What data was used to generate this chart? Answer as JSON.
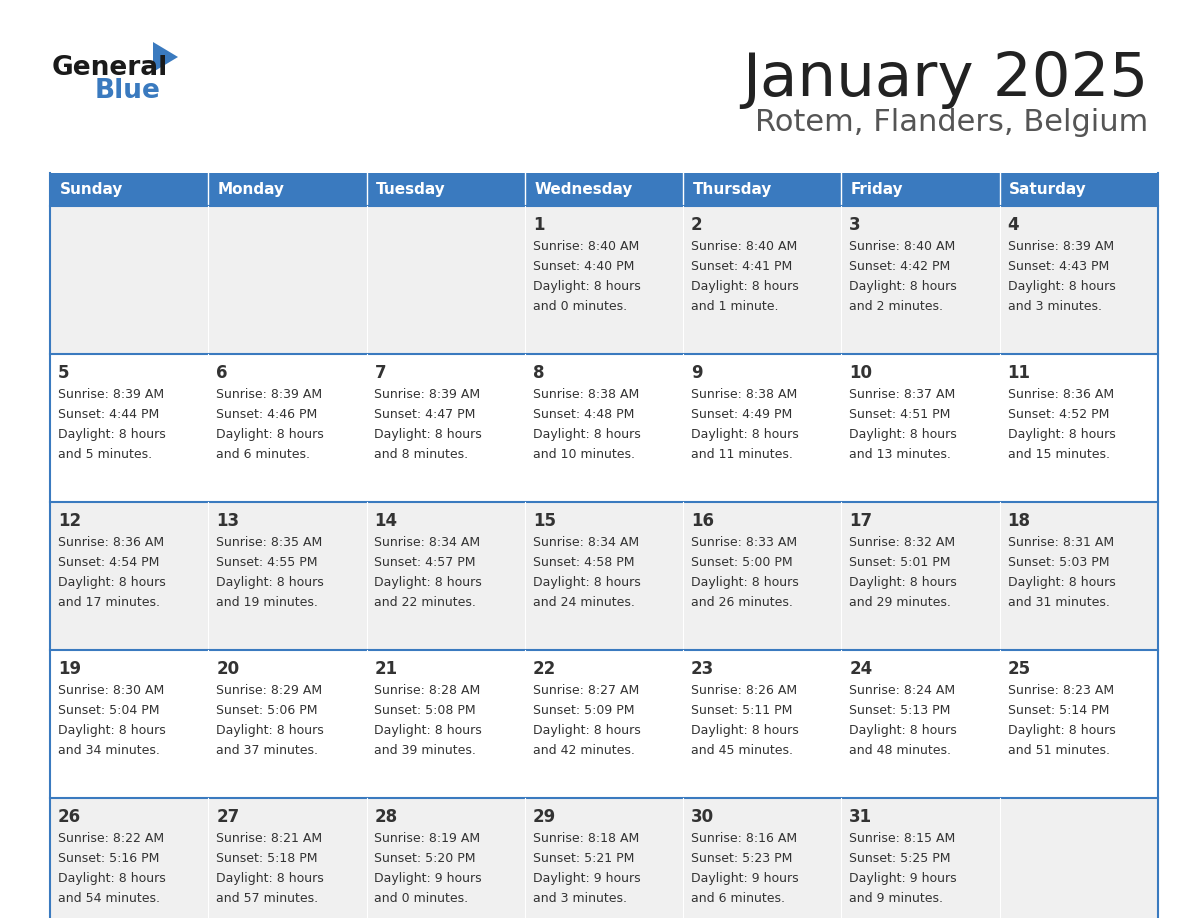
{
  "title": "January 2025",
  "subtitle": "Rotem, Flanders, Belgium",
  "days_of_week": [
    "Sunday",
    "Monday",
    "Tuesday",
    "Wednesday",
    "Thursday",
    "Friday",
    "Saturday"
  ],
  "header_bg": "#3a7abf",
  "header_text": "#ffffff",
  "row_bg_odd": "#f0f0f0",
  "row_bg_even": "#ffffff",
  "cell_text": "#333333",
  "grid_line": "#3a7abf",
  "title_color": "#222222",
  "subtitle_color": "#555555",
  "logo_general_color": "#1a1a1a",
  "logo_blue_color": "#3a7abf",
  "logo_triangle_color": "#3a7abf",
  "calendar": [
    [
      null,
      null,
      null,
      {
        "day": 1,
        "sunrise": "8:40 AM",
        "sunset": "4:40 PM",
        "daylight": "8 hours and 0 minutes."
      },
      {
        "day": 2,
        "sunrise": "8:40 AM",
        "sunset": "4:41 PM",
        "daylight": "8 hours and 1 minute."
      },
      {
        "day": 3,
        "sunrise": "8:40 AM",
        "sunset": "4:42 PM",
        "daylight": "8 hours and 2 minutes."
      },
      {
        "day": 4,
        "sunrise": "8:39 AM",
        "sunset": "4:43 PM",
        "daylight": "8 hours and 3 minutes."
      }
    ],
    [
      {
        "day": 5,
        "sunrise": "8:39 AM",
        "sunset": "4:44 PM",
        "daylight": "8 hours and 5 minutes."
      },
      {
        "day": 6,
        "sunrise": "8:39 AM",
        "sunset": "4:46 PM",
        "daylight": "8 hours and 6 minutes."
      },
      {
        "day": 7,
        "sunrise": "8:39 AM",
        "sunset": "4:47 PM",
        "daylight": "8 hours and 8 minutes."
      },
      {
        "day": 8,
        "sunrise": "8:38 AM",
        "sunset": "4:48 PM",
        "daylight": "8 hours and 10 minutes."
      },
      {
        "day": 9,
        "sunrise": "8:38 AM",
        "sunset": "4:49 PM",
        "daylight": "8 hours and 11 minutes."
      },
      {
        "day": 10,
        "sunrise": "8:37 AM",
        "sunset": "4:51 PM",
        "daylight": "8 hours and 13 minutes."
      },
      {
        "day": 11,
        "sunrise": "8:36 AM",
        "sunset": "4:52 PM",
        "daylight": "8 hours and 15 minutes."
      }
    ],
    [
      {
        "day": 12,
        "sunrise": "8:36 AM",
        "sunset": "4:54 PM",
        "daylight": "8 hours and 17 minutes."
      },
      {
        "day": 13,
        "sunrise": "8:35 AM",
        "sunset": "4:55 PM",
        "daylight": "8 hours and 19 minutes."
      },
      {
        "day": 14,
        "sunrise": "8:34 AM",
        "sunset": "4:57 PM",
        "daylight": "8 hours and 22 minutes."
      },
      {
        "day": 15,
        "sunrise": "8:34 AM",
        "sunset": "4:58 PM",
        "daylight": "8 hours and 24 minutes."
      },
      {
        "day": 16,
        "sunrise": "8:33 AM",
        "sunset": "5:00 PM",
        "daylight": "8 hours and 26 minutes."
      },
      {
        "day": 17,
        "sunrise": "8:32 AM",
        "sunset": "5:01 PM",
        "daylight": "8 hours and 29 minutes."
      },
      {
        "day": 18,
        "sunrise": "8:31 AM",
        "sunset": "5:03 PM",
        "daylight": "8 hours and 31 minutes."
      }
    ],
    [
      {
        "day": 19,
        "sunrise": "8:30 AM",
        "sunset": "5:04 PM",
        "daylight": "8 hours and 34 minutes."
      },
      {
        "day": 20,
        "sunrise": "8:29 AM",
        "sunset": "5:06 PM",
        "daylight": "8 hours and 37 minutes."
      },
      {
        "day": 21,
        "sunrise": "8:28 AM",
        "sunset": "5:08 PM",
        "daylight": "8 hours and 39 minutes."
      },
      {
        "day": 22,
        "sunrise": "8:27 AM",
        "sunset": "5:09 PM",
        "daylight": "8 hours and 42 minutes."
      },
      {
        "day": 23,
        "sunrise": "8:26 AM",
        "sunset": "5:11 PM",
        "daylight": "8 hours and 45 minutes."
      },
      {
        "day": 24,
        "sunrise": "8:24 AM",
        "sunset": "5:13 PM",
        "daylight": "8 hours and 48 minutes."
      },
      {
        "day": 25,
        "sunrise": "8:23 AM",
        "sunset": "5:14 PM",
        "daylight": "8 hours and 51 minutes."
      }
    ],
    [
      {
        "day": 26,
        "sunrise": "8:22 AM",
        "sunset": "5:16 PM",
        "daylight": "8 hours and 54 minutes."
      },
      {
        "day": 27,
        "sunrise": "8:21 AM",
        "sunset": "5:18 PM",
        "daylight": "8 hours and 57 minutes."
      },
      {
        "day": 28,
        "sunrise": "8:19 AM",
        "sunset": "5:20 PM",
        "daylight": "9 hours and 0 minutes."
      },
      {
        "day": 29,
        "sunrise": "8:18 AM",
        "sunset": "5:21 PM",
        "daylight": "9 hours and 3 minutes."
      },
      {
        "day": 30,
        "sunrise": "8:16 AM",
        "sunset": "5:23 PM",
        "daylight": "9 hours and 6 minutes."
      },
      {
        "day": 31,
        "sunrise": "8:15 AM",
        "sunset": "5:25 PM",
        "daylight": "9 hours and 9 minutes."
      },
      null
    ]
  ]
}
